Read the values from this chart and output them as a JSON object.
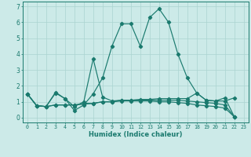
{
  "xlabel": "Humidex (Indice chaleur)",
  "background_color": "#cceae8",
  "grid_color": "#aad4d0",
  "line_color": "#1a7a6e",
  "xlim": [
    -0.5,
    23.5
  ],
  "ylim": [
    -0.3,
    7.3
  ],
  "xticks": [
    0,
    1,
    2,
    3,
    4,
    5,
    6,
    7,
    8,
    9,
    10,
    11,
    12,
    13,
    14,
    15,
    16,
    17,
    18,
    19,
    20,
    21,
    22,
    23
  ],
  "yticks": [
    0,
    1,
    2,
    3,
    4,
    5,
    6,
    7
  ],
  "series": [
    [
      1.5,
      0.75,
      0.7,
      1.6,
      1.2,
      0.45,
      0.8,
      1.5,
      2.5,
      4.5,
      5.9,
      5.9,
      4.5,
      6.3,
      6.85,
      6.0,
      4.0,
      2.5,
      1.55,
      1.1,
      1.05,
      1.25,
      0.05
    ],
    [
      1.5,
      0.75,
      0.7,
      1.55,
      1.2,
      0.7,
      1.0,
      3.7,
      1.3,
      1.05,
      1.1,
      1.1,
      1.15,
      1.15,
      1.2,
      1.2,
      1.2,
      1.2,
      1.55,
      1.1,
      1.05,
      1.05,
      1.25
    ],
    [
      1.5,
      0.75,
      0.7,
      0.8,
      0.8,
      0.8,
      0.85,
      0.9,
      1.0,
      1.0,
      1.05,
      1.05,
      1.05,
      1.05,
      1.0,
      1.0,
      0.95,
      0.9,
      0.8,
      0.75,
      0.7,
      0.6,
      0.05
    ],
    [
      1.5,
      0.75,
      0.7,
      0.8,
      0.8,
      0.8,
      0.9,
      0.9,
      1.0,
      1.0,
      1.1,
      1.1,
      1.1,
      1.1,
      1.1,
      1.1,
      1.1,
      1.05,
      1.0,
      0.95,
      0.9,
      0.8,
      0.05
    ]
  ]
}
